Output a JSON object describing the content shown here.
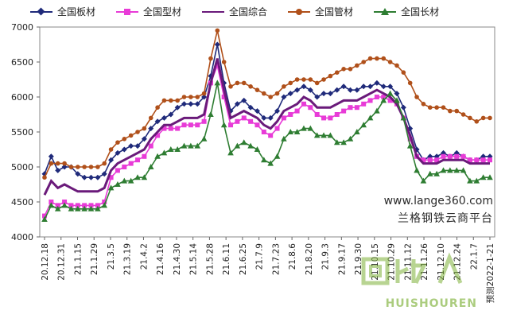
{
  "chart_data": {
    "type": "line",
    "title": "",
    "xlabel": "",
    "ylabel": "",
    "ylim": [
      4000,
      7000
    ],
    "yticks": [
      4000,
      4500,
      5000,
      5500,
      6000,
      6500,
      7000
    ],
    "grid": false,
    "legend_position": "top",
    "x_tick_labels": [
      "20.12.18",
      "20.12.31",
      "21.1.15",
      "21.1.29",
      "21.3.5",
      "21.3.19",
      "21.4.2",
      "21.4.16",
      "21.4.30",
      "21.5.14",
      "21.5.28",
      "21.6.11",
      "21.6.25",
      "21.7.9",
      "21.7.23",
      "21.8.6",
      "21.8.20",
      "21.9.3",
      "21.9.17",
      "21.9.30",
      "21.10.15",
      "21.10.29",
      "21.11.12",
      "21.11.26",
      "21.12.10",
      "21.12.24",
      "22.1.7",
      "预测2022-1-21"
    ],
    "series": [
      {
        "name": "全国板材",
        "color": "#1f2a7a",
        "marker": "diamond",
        "values": [
          4900,
          5150,
          4950,
          5000,
          5000,
          4900,
          4850,
          4850,
          4850,
          4900,
          5100,
          5200,
          5250,
          5300,
          5300,
          5400,
          5550,
          5650,
          5700,
          5750,
          5850,
          5900,
          5900,
          5900,
          6000,
          6300,
          6750,
          6200,
          5800,
          5900,
          5950,
          5850,
          5800,
          5700,
          5700,
          5800,
          6000,
          6050,
          6100,
          6150,
          6100,
          6000,
          6050,
          6050,
          6100,
          6150,
          6100,
          6100,
          6150,
          6150,
          6200,
          6150,
          6150,
          6050,
          5850,
          5550,
          5250,
          5100,
          5150,
          5150,
          5200,
          5150,
          5200,
          5150,
          5100,
          5100,
          5150,
          5150
        ]
      },
      {
        "name": "全国型材",
        "color": "#e83bd7",
        "marker": "square",
        "values": [
          4300,
          4500,
          4450,
          4500,
          4450,
          4450,
          4450,
          4450,
          4450,
          4500,
          4850,
          4950,
          5000,
          5050,
          5100,
          5150,
          5300,
          5450,
          5550,
          5550,
          5550,
          5600,
          5600,
          5600,
          5650,
          6200,
          6450,
          6000,
          5600,
          5650,
          5700,
          5650,
          5600,
          5500,
          5450,
          5550,
          5700,
          5750,
          5800,
          5900,
          5850,
          5750,
          5700,
          5700,
          5750,
          5800,
          5850,
          5850,
          5900,
          5950,
          6000,
          6000,
          5950,
          5900,
          5700,
          5400,
          5150,
          5100,
          5100,
          5100,
          5150,
          5150,
          5150,
          5150,
          5100,
          5100,
          5100,
          5100
        ]
      },
      {
        "name": "全国综合",
        "color": "#6a1a7a",
        "marker": "none",
        "values": [
          4600,
          4800,
          4700,
          4750,
          4700,
          4650,
          4650,
          4650,
          4650,
          4700,
          4950,
          5050,
          5100,
          5150,
          5200,
          5250,
          5400,
          5500,
          5600,
          5600,
          5650,
          5700,
          5700,
          5700,
          5750,
          6200,
          6550,
          6100,
          5700,
          5750,
          5800,
          5750,
          5700,
          5600,
          5550,
          5650,
          5800,
          5850,
          5900,
          6000,
          5950,
          5850,
          5850,
          5850,
          5900,
          5950,
          5950,
          5950,
          6000,
          6050,
          6100,
          6050,
          6000,
          5900,
          5700,
          5450,
          5150,
          5050,
          5050,
          5050,
          5100,
          5100,
          5100,
          5100,
          5050,
          5050,
          5050,
          5050
        ]
      },
      {
        "name": "全国管材",
        "color": "#b0501a",
        "marker": "circle",
        "values": [
          4850,
          5050,
          5050,
          5050,
          5000,
          5000,
          5000,
          5000,
          5000,
          5050,
          5250,
          5350,
          5400,
          5450,
          5500,
          5550,
          5700,
          5850,
          5950,
          5950,
          5950,
          6000,
          6000,
          6000,
          6050,
          6550,
          6950,
          6500,
          6150,
          6200,
          6200,
          6150,
          6100,
          6050,
          6000,
          6050,
          6150,
          6200,
          6250,
          6250,
          6250,
          6200,
          6250,
          6300,
          6350,
          6400,
          6400,
          6450,
          6500,
          6550,
          6550,
          6550,
          6500,
          6450,
          6350,
          6200,
          6000,
          5900,
          5850,
          5850,
          5850,
          5800,
          5800,
          5750,
          5700,
          5650,
          5700,
          5700
        ]
      },
      {
        "name": "全国长材",
        "color": "#2e7d32",
        "marker": "triangle",
        "values": [
          4250,
          4450,
          4400,
          4450,
          4400,
          4400,
          4400,
          4400,
          4400,
          4450,
          4700,
          4750,
          4800,
          4800,
          4850,
          4850,
          5000,
          5150,
          5200,
          5250,
          5250,
          5300,
          5300,
          5300,
          5400,
          5750,
          6200,
          5600,
          5200,
          5300,
          5350,
          5300,
          5250,
          5100,
          5050,
          5150,
          5400,
          5500,
          5500,
          5550,
          5550,
          5450,
          5450,
          5450,
          5350,
          5350,
          5400,
          5500,
          5600,
          5700,
          5800,
          5950,
          6050,
          5950,
          5700,
          5300,
          4950,
          4800,
          4900,
          4900,
          4950,
          4950,
          4950,
          4950,
          4800,
          4800,
          4850,
          4850
        ]
      }
    ]
  },
  "watermark": {
    "url": "www.lange360.com",
    "brand": "兰格钢铁云商平台"
  },
  "logo": {
    "text": "HUISHOUREN",
    "glyph": "回收人"
  }
}
